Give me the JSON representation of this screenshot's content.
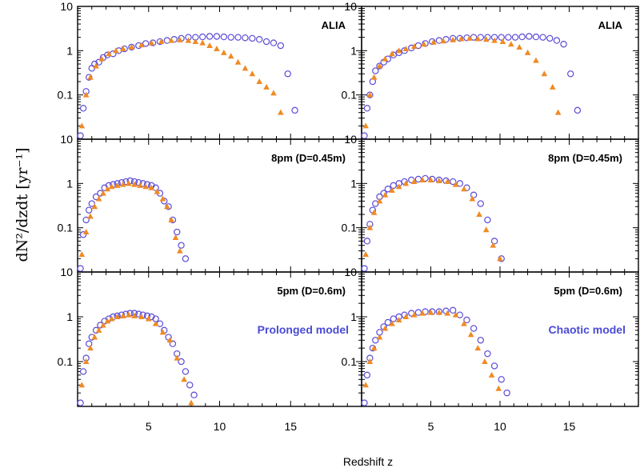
{
  "colors": {
    "accent_circle": "#5a4bd6",
    "accent_triangle": "#f08a24",
    "model_text": "#4a4bd6"
  },
  "ylabel": "dN²/dzdt  [yr⁻¹]",
  "xlabel": "Redshift z",
  "chart_data": [
    {
      "type": "scatter",
      "yscale": "log",
      "xlim": [
        0,
        20
      ],
      "ylim": [
        0.01,
        10
      ],
      "xticks": [
        "5",
        "10",
        "15"
      ],
      "yticks": [
        "10",
        "1",
        "0.1"
      ],
      "title": "ALIA",
      "annotation": "",
      "series": [
        {
          "marker": "circle",
          "x": [
            0.2,
            0.4,
            0.6,
            0.8,
            1.0,
            1.2,
            1.5,
            1.8,
            2.1,
            2.5,
            2.9,
            3.3,
            3.8,
            4.3,
            4.8,
            5.3,
            5.8,
            6.3,
            6.8,
            7.3,
            7.8,
            8.3,
            8.8,
            9.3,
            9.8,
            10.3,
            10.8,
            11.3,
            11.8,
            12.3,
            12.8,
            13.3,
            13.8,
            14.3,
            14.8,
            15.3
          ],
          "y": [
            0.012,
            0.05,
            0.12,
            0.25,
            0.4,
            0.5,
            0.55,
            0.7,
            0.8,
            0.85,
            1.0,
            1.1,
            1.2,
            1.3,
            1.45,
            1.5,
            1.6,
            1.7,
            1.8,
            1.9,
            2.0,
            2.0,
            2.05,
            2.1,
            2.1,
            2.05,
            2.0,
            2.0,
            1.95,
            1.9,
            1.8,
            1.6,
            1.5,
            1.3,
            0.3,
            0.045
          ]
        },
        {
          "marker": "triangle",
          "x": [
            0.3,
            0.6,
            0.9,
            1.3,
            1.7,
            2.2,
            2.7,
            3.2,
            3.8,
            4.5,
            5.2,
            5.9,
            6.6,
            7.2,
            7.8,
            8.3,
            8.8,
            9.3,
            9.8,
            10.3,
            10.8,
            11.3,
            11.8,
            12.3,
            12.8,
            13.3,
            13.8,
            14.3
          ],
          "y": [
            0.02,
            0.1,
            0.25,
            0.45,
            0.65,
            0.85,
            1.0,
            1.1,
            1.2,
            1.35,
            1.5,
            1.6,
            1.7,
            1.75,
            1.7,
            1.6,
            1.5,
            1.3,
            1.1,
            0.9,
            0.75,
            0.55,
            0.4,
            0.3,
            0.2,
            0.15,
            0.11,
            0.04
          ]
        }
      ]
    },
    {
      "type": "scatter",
      "yscale": "log",
      "xlim": [
        0,
        20
      ],
      "ylim": [
        0.01,
        10
      ],
      "xticks": [
        "5",
        "10",
        "15"
      ],
      "yticks": [
        "10",
        "1",
        "0.1"
      ],
      "title": "ALIA",
      "annotation": "",
      "series": [
        {
          "marker": "circle",
          "x": [
            0.2,
            0.4,
            0.6,
            0.8,
            1.0,
            1.3,
            1.6,
            1.9,
            2.3,
            2.7,
            3.1,
            3.6,
            4.1,
            4.6,
            5.1,
            5.6,
            6.1,
            6.6,
            7.1,
            7.6,
            8.1,
            8.6,
            9.1,
            9.6,
            10.1,
            10.6,
            11.1,
            11.6,
            12.1,
            12.6,
            13.1,
            13.6,
            14.1,
            14.6,
            15.1,
            15.6
          ],
          "y": [
            0.012,
            0.05,
            0.1,
            0.2,
            0.35,
            0.45,
            0.55,
            0.65,
            0.8,
            0.9,
            1.0,
            1.15,
            1.3,
            1.45,
            1.6,
            1.7,
            1.8,
            1.9,
            1.9,
            1.95,
            2.0,
            2.0,
            2.0,
            2.0,
            2.0,
            2.0,
            2.0,
            2.05,
            2.1,
            2.05,
            2.0,
            1.9,
            1.7,
            1.4,
            0.3,
            0.045
          ]
        },
        {
          "marker": "triangle",
          "x": [
            0.3,
            0.6,
            0.9,
            1.3,
            1.7,
            2.2,
            2.7,
            3.2,
            3.8,
            4.5,
            5.2,
            5.9,
            6.6,
            7.2,
            7.8,
            8.4,
            9.0,
            9.6,
            10.2,
            10.8,
            11.4,
            12.0,
            12.6,
            13.2,
            13.8,
            14.2
          ],
          "y": [
            0.02,
            0.1,
            0.25,
            0.45,
            0.65,
            0.85,
            1.0,
            1.1,
            1.25,
            1.4,
            1.55,
            1.65,
            1.75,
            1.85,
            1.9,
            1.85,
            1.8,
            1.7,
            1.6,
            1.4,
            1.2,
            0.9,
            0.6,
            0.3,
            0.15,
            0.04
          ]
        }
      ]
    },
    {
      "type": "scatter",
      "yscale": "log",
      "xlim": [
        0,
        20
      ],
      "ylim": [
        0.01,
        10
      ],
      "xticks": [
        "5",
        "10",
        "15"
      ],
      "yticks": [
        "10",
        "1",
        "0.1"
      ],
      "title": "8pm (D=0.45m)",
      "annotation": "",
      "series": [
        {
          "marker": "circle",
          "x": [
            0.2,
            0.4,
            0.6,
            0.8,
            1.0,
            1.3,
            1.6,
            1.9,
            2.2,
            2.5,
            2.8,
            3.1,
            3.4,
            3.7,
            4.0,
            4.3,
            4.6,
            4.9,
            5.2,
            5.5,
            5.8,
            6.1,
            6.4,
            6.7,
            7.0,
            7.3,
            7.6
          ],
          "y": [
            0.012,
            0.07,
            0.15,
            0.25,
            0.35,
            0.5,
            0.6,
            0.8,
            0.9,
            0.95,
            1.0,
            1.05,
            1.1,
            1.15,
            1.1,
            1.05,
            1.0,
            0.95,
            0.9,
            0.8,
            0.6,
            0.4,
            0.3,
            0.15,
            0.08,
            0.04,
            0.02
          ]
        },
        {
          "marker": "triangle",
          "x": [
            0.3,
            0.6,
            0.9,
            1.2,
            1.5,
            1.8,
            2.1,
            2.4,
            2.8,
            3.2,
            3.6,
            4.0,
            4.4,
            4.8,
            5.2,
            5.6,
            6.0,
            6.3,
            6.6,
            6.9,
            7.2
          ],
          "y": [
            0.025,
            0.08,
            0.18,
            0.3,
            0.45,
            0.6,
            0.75,
            0.85,
            0.9,
            0.95,
            1.0,
            0.95,
            0.9,
            0.85,
            0.8,
            0.65,
            0.45,
            0.3,
            0.15,
            0.06,
            0.03
          ]
        }
      ]
    },
    {
      "type": "scatter",
      "yscale": "log",
      "xlim": [
        0,
        20
      ],
      "ylim": [
        0.01,
        10
      ],
      "xticks": [
        "5",
        "10",
        "15"
      ],
      "yticks": [
        "10",
        "1",
        "0.1"
      ],
      "title": "8pm (D=0.45m)",
      "annotation": "",
      "series": [
        {
          "marker": "circle",
          "x": [
            0.2,
            0.4,
            0.6,
            0.8,
            1.0,
            1.3,
            1.6,
            1.9,
            2.3,
            2.7,
            3.1,
            3.6,
            4.1,
            4.6,
            5.1,
            5.6,
            6.1,
            6.6,
            7.1,
            7.6,
            8.1,
            8.6,
            9.1,
            9.6,
            10.1
          ],
          "y": [
            0.012,
            0.05,
            0.12,
            0.25,
            0.35,
            0.5,
            0.6,
            0.75,
            0.9,
            1.0,
            1.1,
            1.2,
            1.25,
            1.3,
            1.25,
            1.2,
            1.15,
            1.1,
            1.0,
            0.8,
            0.55,
            0.35,
            0.15,
            0.05,
            0.02
          ]
        },
        {
          "marker": "triangle",
          "x": [
            0.3,
            0.6,
            0.9,
            1.3,
            1.7,
            2.2,
            2.7,
            3.2,
            3.8,
            4.4,
            5.0,
            5.6,
            6.2,
            6.8,
            7.4,
            8.0,
            8.5,
            9.0,
            9.5,
            10.0
          ],
          "y": [
            0.025,
            0.1,
            0.22,
            0.4,
            0.55,
            0.7,
            0.85,
            1.0,
            1.1,
            1.2,
            1.2,
            1.15,
            1.1,
            0.95,
            0.75,
            0.45,
            0.2,
            0.09,
            0.04,
            0.02
          ]
        }
      ]
    },
    {
      "type": "scatter",
      "yscale": "log",
      "xlim": [
        0,
        20
      ],
      "ylim": [
        0.01,
        10
      ],
      "xticks": [
        "5",
        "10",
        "15"
      ],
      "yticks": [
        "10",
        "1",
        "0.1"
      ],
      "title": "5pm (D=0.6m)",
      "annotation": "Prolonged model",
      "series": [
        {
          "marker": "circle",
          "x": [
            0.2,
            0.4,
            0.6,
            0.8,
            1.0,
            1.3,
            1.6,
            1.9,
            2.2,
            2.5,
            2.8,
            3.1,
            3.4,
            3.7,
            4.0,
            4.3,
            4.6,
            4.9,
            5.2,
            5.5,
            5.8,
            6.1,
            6.4,
            6.7,
            7.0,
            7.3,
            7.6,
            7.9,
            8.2
          ],
          "y": [
            0.012,
            0.06,
            0.12,
            0.25,
            0.35,
            0.5,
            0.65,
            0.8,
            0.9,
            1.0,
            1.05,
            1.1,
            1.15,
            1.2,
            1.2,
            1.15,
            1.1,
            1.05,
            1.0,
            0.9,
            0.7,
            0.5,
            0.35,
            0.25,
            0.15,
            0.1,
            0.06,
            0.03,
            0.018
          ]
        },
        {
          "marker": "triangle",
          "x": [
            0.3,
            0.6,
            0.9,
            1.2,
            1.5,
            1.8,
            2.1,
            2.4,
            2.8,
            3.2,
            3.6,
            4.0,
            4.5,
            5.0,
            5.5,
            6.0,
            6.5,
            7.0,
            7.5,
            8.0
          ],
          "y": [
            0.03,
            0.1,
            0.2,
            0.35,
            0.5,
            0.65,
            0.8,
            0.9,
            1.0,
            1.05,
            1.1,
            1.05,
            1.0,
            0.9,
            0.7,
            0.45,
            0.3,
            0.12,
            0.04,
            0.012
          ]
        }
      ]
    },
    {
      "type": "scatter",
      "yscale": "log",
      "xlim": [
        0,
        20
      ],
      "ylim": [
        0.01,
        10
      ],
      "xticks": [
        "5",
        "10",
        "15"
      ],
      "yticks": [
        "10",
        "1",
        "0.1"
      ],
      "title": "5pm (D=0.6m)",
      "annotation": "Chaotic model",
      "series": [
        {
          "marker": "circle",
          "x": [
            0.2,
            0.4,
            0.6,
            0.8,
            1.0,
            1.3,
            1.6,
            1.9,
            2.3,
            2.7,
            3.1,
            3.6,
            4.1,
            4.6,
            5.1,
            5.6,
            6.1,
            6.6,
            7.1,
            7.6,
            8.1,
            8.6,
            9.1,
            9.6,
            10.1,
            10.5
          ],
          "y": [
            0.012,
            0.05,
            0.12,
            0.2,
            0.3,
            0.45,
            0.6,
            0.75,
            0.9,
            1.0,
            1.1,
            1.2,
            1.25,
            1.3,
            1.3,
            1.3,
            1.35,
            1.4,
            1.1,
            0.85,
            0.55,
            0.3,
            0.15,
            0.08,
            0.04,
            0.02
          ]
        },
        {
          "marker": "triangle",
          "x": [
            0.3,
            0.6,
            0.9,
            1.3,
            1.7,
            2.2,
            2.7,
            3.2,
            3.8,
            4.4,
            5.0,
            5.6,
            6.2,
            6.8,
            7.4,
            7.9,
            8.4,
            8.9,
            9.4,
            9.9
          ],
          "y": [
            0.03,
            0.1,
            0.2,
            0.35,
            0.55,
            0.7,
            0.85,
            1.0,
            1.1,
            1.2,
            1.25,
            1.25,
            1.2,
            1.1,
            0.7,
            0.4,
            0.2,
            0.1,
            0.05,
            0.025
          ]
        }
      ]
    }
  ]
}
